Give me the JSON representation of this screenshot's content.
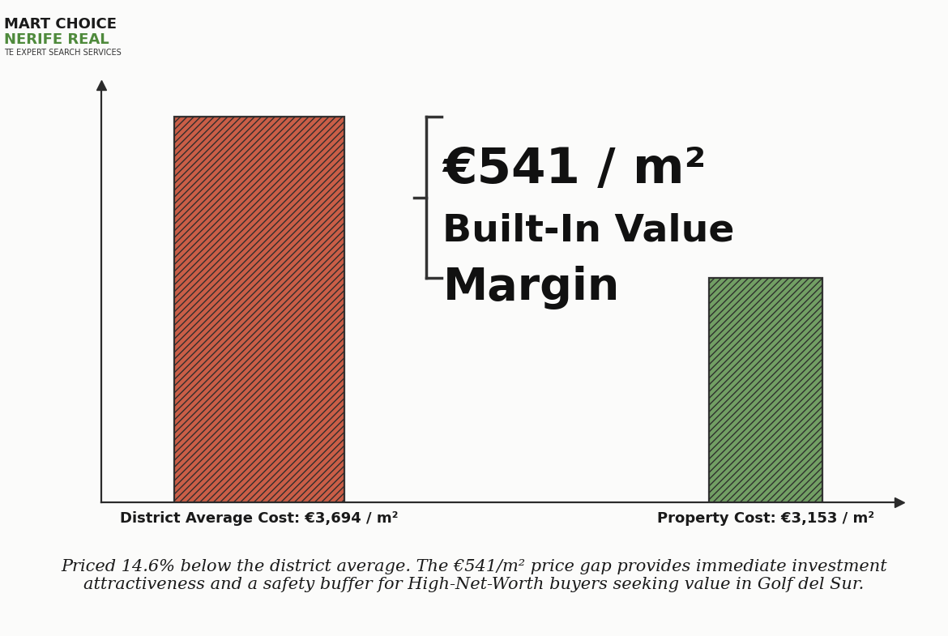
{
  "logo": [
    "MART CHOICE",
    "NERIFE REAL",
    "TE EXPERT SEARCH SERVICES"
  ],
  "chart_data": {
    "type": "bar",
    "categories": [
      "District Average Cost: €3,694 / m²",
      "Property Cost: €3,153 / m²"
    ],
    "values": [
      3694,
      3153
    ],
    "colors": [
      "#c8553d",
      "#6b9a5c"
    ],
    "ylim": [
      2400,
      3800
    ],
    "yticks": [],
    "tick_labels": "x",
    "annotation": [
      "€541 / m²",
      "Built-In Value",
      "Margin"
    ],
    "caption": "Priced 14.6% below the district average. The €541/m² price gap provides immediate investment attractiveness and a safety buffer for High-Net-Worth buyers seeking value in Golf del Sur."
  }
}
